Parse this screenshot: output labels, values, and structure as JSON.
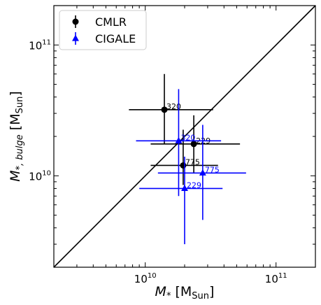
{
  "chart_data": {
    "type": "scatter",
    "title": "",
    "x_axis": {
      "label_main": "M",
      "label_sub": "*",
      "label_unit_open": " [M",
      "label_unit_sub": "Sun",
      "label_unit_close": "]",
      "scale": "log",
      "range": [
        2000000000.0,
        200000000000.0
      ],
      "major_ticks": [
        {
          "value": 10000000000.0,
          "base": "10",
          "exp": "10"
        },
        {
          "value": 100000000000.0,
          "base": "10",
          "exp": "11"
        }
      ]
    },
    "y_axis": {
      "label_main": "M",
      "label_sub": "*, bulge",
      "label_unit_open": " [M",
      "label_unit_sub": "Sun",
      "label_unit_close": "]",
      "scale": "log",
      "range": [
        2000000000.0,
        200000000000.0
      ],
      "major_ticks": [
        {
          "value": 10000000000.0,
          "base": "10",
          "exp": "10"
        },
        {
          "value": 100000000000.0,
          "base": "10",
          "exp": "11"
        }
      ]
    },
    "one_to_one_line": true,
    "grid": false,
    "legend_placement": "top-left",
    "series": [
      {
        "name": "CMLR",
        "marker": "circle",
        "color": "#000000",
        "points": [
          {
            "label": "320",
            "x": 14000000000.0,
            "y": 32000000000.0,
            "xerr": [
              7500000000.0,
              33000000000.0
            ],
            "yerr": [
              17500000000.0,
              60000000000.0
            ]
          },
          {
            "label": "229",
            "x": 23500000000.0,
            "y": 17500000000.0,
            "xerr": [
              11000000000.0,
              53000000000.0
            ],
            "yerr": [
              10500000000.0,
              29000000000.0
            ]
          },
          {
            "label": "775",
            "x": 19500000000.0,
            "y": 12000000000.0,
            "xerr": [
              11000000000.0,
              36000000000.0
            ],
            "yerr": [
              8500000000.0,
              22500000000.0
            ]
          }
        ]
      },
      {
        "name": "CIGALE",
        "marker": "triangle",
        "color": "#0000ff",
        "points": [
          {
            "label": "320",
            "x": 18000000000.0,
            "y": 18500000000.0,
            "xerr": [
              8500000000.0,
              38000000000.0
            ],
            "yerr": [
              7000000000.0,
              46000000000.0
            ]
          },
          {
            "label": "775",
            "x": 27500000000.0,
            "y": 10500000000.0,
            "xerr": [
              12500000000.0,
              59000000000.0
            ],
            "yerr": [
              4600000000.0,
              24500000000.0
            ]
          },
          {
            "label": "229",
            "x": 20000000000.0,
            "y": 8000000000.0,
            "xerr": [
              9000000000.0,
              39000000000.0
            ],
            "yerr": [
              3000000000.0,
              14000000000.0
            ]
          }
        ]
      }
    ]
  }
}
